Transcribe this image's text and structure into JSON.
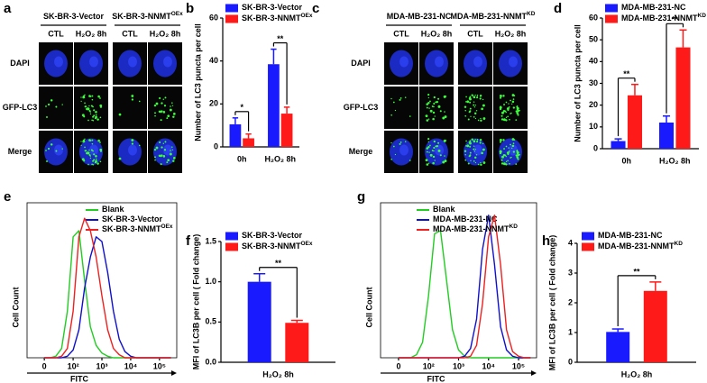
{
  "image_panels": [
    {
      "panel_label": "a",
      "groups": [
        {
          "title": "SK-BR-3-Vector"
        },
        {
          "title": "SK-BR-3-NNMT",
          "title_sup": "OEx"
        }
      ],
      "columns": [
        "CTL",
        "H₂O₂ 8h",
        "CTL",
        "H₂O₂ 8h"
      ],
      "rows": [
        "DAPI",
        "GFP-LC3",
        "Merge"
      ]
    },
    {
      "panel_label": "c",
      "groups": [
        {
          "title": "MDA-MB-231-NC"
        },
        {
          "title": "MDA-MB-231-NNMT",
          "title_sup": "KD"
        }
      ],
      "columns": [
        "CTL",
        "H₂O₂ 8h",
        "CTL",
        "H₂O₂ 8h"
      ],
      "rows": [
        "DAPI",
        "GFP-LC3",
        "Merge"
      ]
    }
  ],
  "chart_data": [
    {
      "type": "bar",
      "panel_label": "b",
      "ylabel": "Number of LC3 puncta per cell",
      "categories": [
        "0h",
        "H₂O₂ 8h"
      ],
      "series": [
        {
          "name": "SK-BR-3-Vector",
          "color": "#1a1aff",
          "values": [
            10.5,
            38.5
          ],
          "errors": [
            3,
            7
          ]
        },
        {
          "name": "SK-BR-3-NNMT",
          "name_sup": "OEx",
          "color": "#ff1a1a",
          "values": [
            4,
            15.5
          ],
          "errors": [
            2,
            3
          ]
        }
      ],
      "annotations": [
        "*",
        "**"
      ],
      "ylim": [
        0,
        60
      ],
      "yticks": [
        0,
        20,
        40,
        60
      ]
    },
    {
      "type": "bar",
      "panel_label": "d",
      "ylabel": "Number of LC3 puncta per cell",
      "categories": [
        "0h",
        "H₂O₂ 8h"
      ],
      "series": [
        {
          "name": "MDA-MB-231-NC",
          "color": "#1a1aff",
          "values": [
            3.5,
            12
          ],
          "errors": [
            1,
            3
          ]
        },
        {
          "name": "MDA-MB-231-NNMT",
          "name_sup": "KD",
          "color": "#ff1a1a",
          "values": [
            24.5,
            46.5
          ],
          "errors": [
            5,
            8
          ]
        }
      ],
      "annotations": [
        "**",
        "**"
      ],
      "ylim": [
        0,
        60
      ],
      "yticks": [
        0,
        10,
        20,
        30,
        40,
        50,
        60
      ]
    },
    {
      "type": "line",
      "panel_label": "e",
      "xlabel": "FITC",
      "ylabel": "Cell Count",
      "x": [
        1,
        1.2,
        1.4,
        1.6,
        1.8,
        2,
        2.2,
        2.4,
        2.6,
        2.8,
        3,
        3.2,
        3.4,
        3.6,
        3.8,
        4,
        4.2,
        4.4,
        4.6,
        4.8,
        5,
        5.2,
        5.4
      ],
      "xlim": [
        0.4,
        5.6
      ],
      "xticks": [
        {
          "value": 1,
          "label": "0"
        },
        {
          "value": 2,
          "label": "10²"
        },
        {
          "value": 3,
          "label": "10³"
        },
        {
          "value": 4,
          "label": "10⁴"
        },
        {
          "value": 5,
          "label": "10⁵"
        }
      ],
      "ylim": [
        0,
        100
      ],
      "series": [
        {
          "name": "Blank",
          "color": "#22cc22",
          "values": [
            0,
            0,
            1,
            6,
            30,
            78,
            82,
            50,
            20,
            8,
            3,
            1,
            0,
            0,
            0,
            0,
            0,
            0,
            0,
            0,
            0,
            0,
            0
          ]
        },
        {
          "name": "SK-BR-3-Vector",
          "color": "#1010cc",
          "values": [
            0,
            0,
            0,
            0,
            1,
            5,
            18,
            45,
            65,
            78,
            75,
            55,
            30,
            12,
            4,
            1,
            0,
            0,
            0,
            0,
            0,
            0,
            0
          ]
        },
        {
          "name": "SK-BR-3-NNMT",
          "name_sup": "OEx",
          "color": "#ee2020",
          "values": [
            0,
            0,
            0,
            1,
            6,
            30,
            78,
            90,
            82,
            65,
            40,
            18,
            6,
            2,
            0,
            0,
            0,
            0,
            0,
            0,
            0,
            0,
            0
          ]
        }
      ]
    },
    {
      "type": "bar",
      "panel_label": "f",
      "ylabel": "MFI of LC3B per cell ( Fold change)",
      "categories": [
        "H₂O₂ 8h"
      ],
      "series": [
        {
          "name": "SK-BR-3-Vector",
          "color": "#1a1aff",
          "values": [
            1.0
          ],
          "errors": [
            0.1
          ]
        },
        {
          "name": "SK-BR-3-NNMT",
          "name_sup": "OEx",
          "color": "#ff1a1a",
          "values": [
            0.49
          ],
          "errors": [
            0.03
          ]
        }
      ],
      "annotations": [
        "**"
      ],
      "ylim": [
        0,
        1.5
      ],
      "yticks": [
        {
          "value": 0,
          "label": "0.0"
        },
        {
          "value": 0.5,
          "label": "0.5"
        },
        {
          "value": 1,
          "label": "1.0"
        },
        {
          "value": 1.5,
          "label": "1.5"
        }
      ]
    },
    {
      "type": "line",
      "panel_label": "g",
      "xlabel": "FITC",
      "ylabel": "Cell Count",
      "x": [
        1,
        1.2,
        1.4,
        1.6,
        1.8,
        2,
        2.2,
        2.4,
        2.6,
        2.8,
        3,
        3.2,
        3.4,
        3.6,
        3.8,
        4,
        4.2,
        4.4,
        4.6,
        4.8,
        5,
        5.2,
        5.4
      ],
      "xlim": [
        0.4,
        5.6
      ],
      "xticks": [
        {
          "value": 1,
          "label": "0"
        },
        {
          "value": 2,
          "label": "10²"
        },
        {
          "value": 3,
          "label": "10³"
        },
        {
          "value": 4,
          "label": "10⁴"
        },
        {
          "value": 5,
          "label": "10⁵"
        }
      ],
      "ylim": [
        0,
        100
      ],
      "series": [
        {
          "name": "Blank",
          "color": "#22cc22",
          "values": [
            0,
            0,
            0,
            2,
            10,
            40,
            80,
            82,
            50,
            18,
            5,
            1,
            0,
            0,
            0,
            0,
            0,
            0,
            0,
            0,
            0,
            0,
            0
          ]
        },
        {
          "name": "MDA-MB-231-NC",
          "color": "#1010cc",
          "values": [
            0,
            0,
            0,
            0,
            0,
            0,
            0,
            0,
            0,
            0,
            0,
            1,
            6,
            25,
            70,
            92,
            60,
            20,
            5,
            1,
            0,
            0,
            0
          ]
        },
        {
          "name": "MDA-MB-231-NNMT",
          "name_sup": "KD",
          "color": "#ee2020",
          "values": [
            0,
            0,
            0,
            0,
            0,
            0,
            0,
            0,
            0,
            0,
            0,
            0,
            1,
            8,
            35,
            78,
            92,
            60,
            18,
            4,
            1,
            0,
            0
          ]
        }
      ]
    },
    {
      "type": "bar",
      "panel_label": "h",
      "ylabel": "MFI of LC3B per cell ( Fold change)",
      "categories": [
        "H₂O₂ 8h"
      ],
      "series": [
        {
          "name": "MDA-MB-231-NC",
          "color": "#1a1aff",
          "values": [
            1.02
          ],
          "errors": [
            0.1
          ]
        },
        {
          "name": "MDA-MB-231-NNMT",
          "name_sup": "KD",
          "color": "#ff1a1a",
          "values": [
            2.4
          ],
          "errors": [
            0.3
          ]
        }
      ],
      "annotations": [
        "**"
      ],
      "ylim": [
        0,
        4
      ],
      "yticks": [
        0,
        1,
        2,
        3,
        4
      ]
    }
  ]
}
